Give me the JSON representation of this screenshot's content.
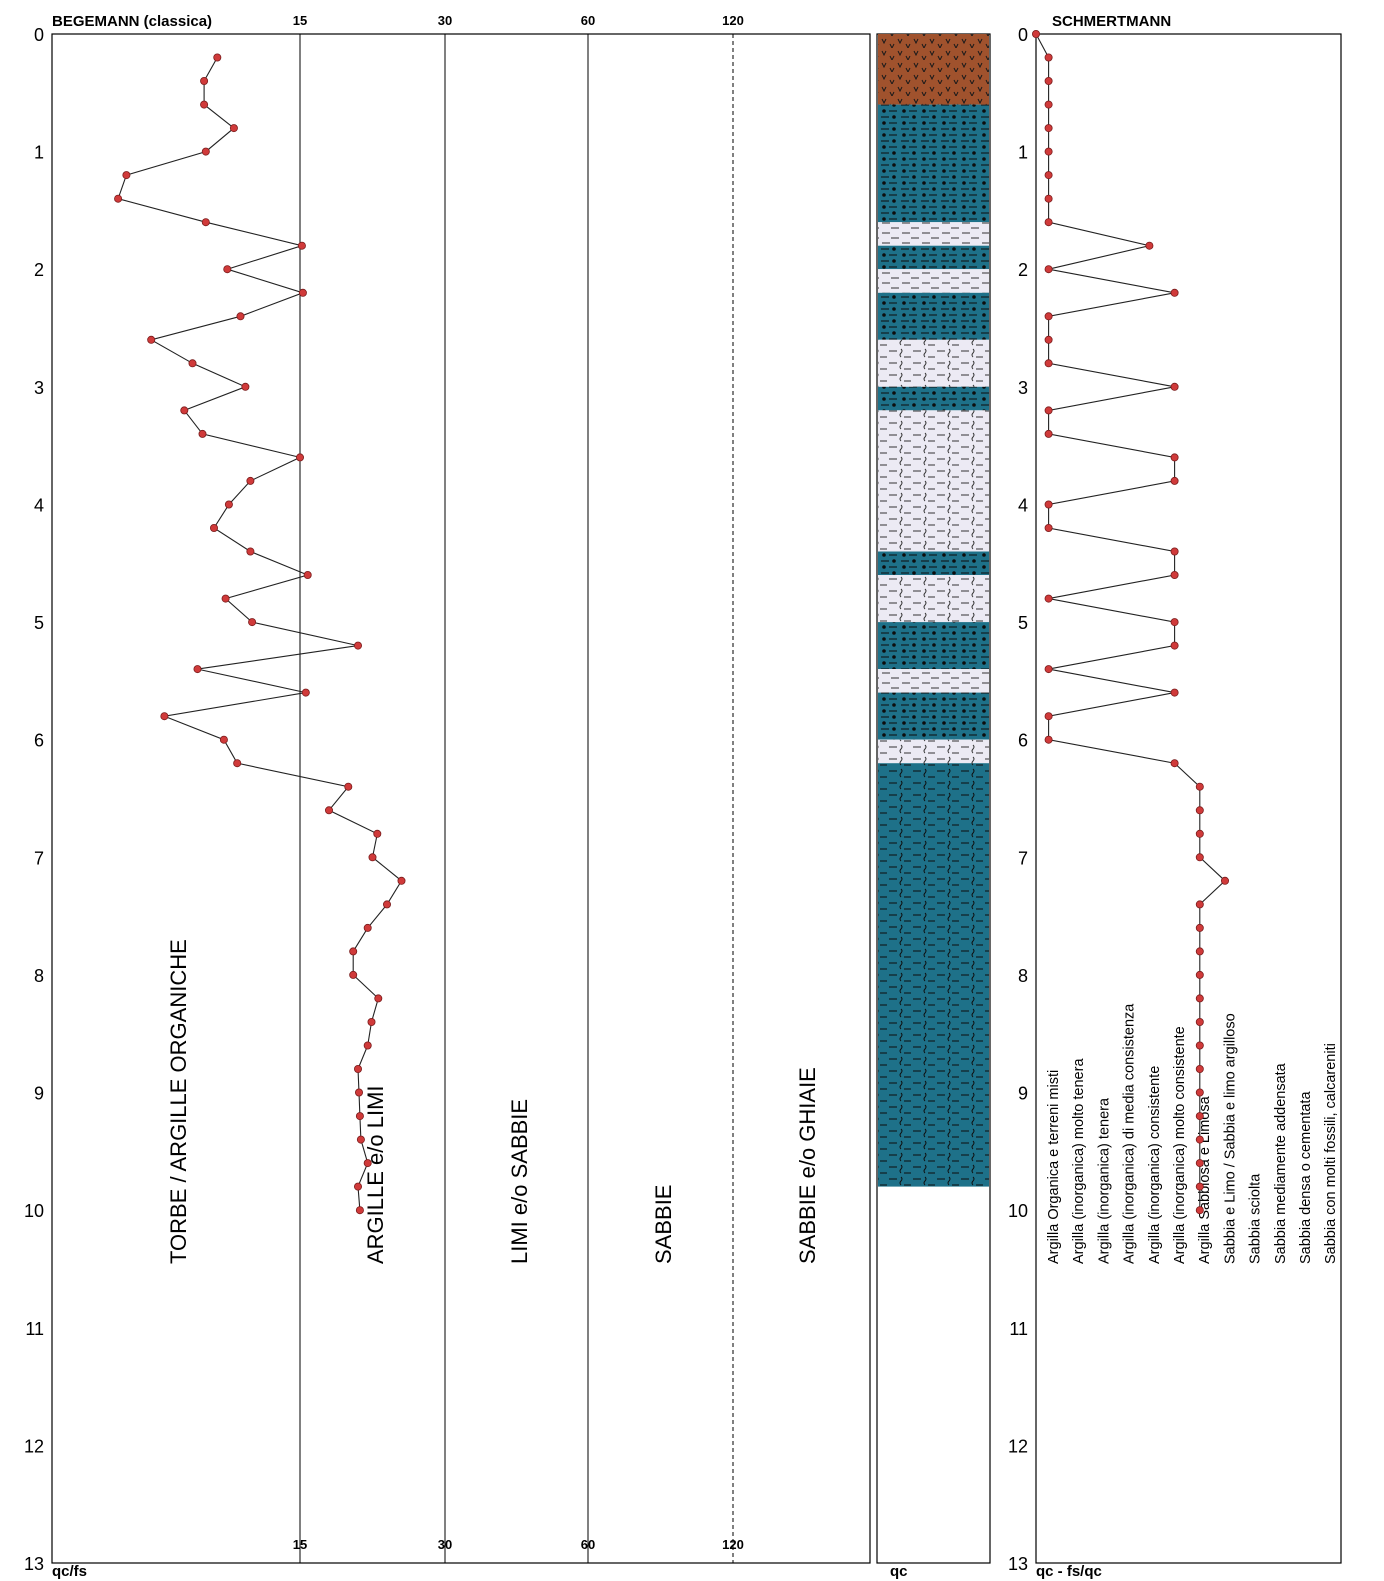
{
  "chart_data": [
    {
      "type": "line",
      "title": "BEGEMANN (classica)",
      "xlabel": "qc/fs",
      "ylabel": "",
      "ylim": [
        0,
        13
      ],
      "y_ticks": [
        "0",
        "1",
        "2",
        "3",
        "4",
        "5",
        "6",
        "7",
        "8",
        "9",
        "10",
        "11",
        "12",
        "13"
      ],
      "zone_boundaries": [
        "15",
        "30",
        "60",
        "120"
      ],
      "zones": [
        "TORBE / ARGILLE ORGANICHE",
        "ARGILLE e/o LIMI",
        "LIMI e/o SABBIE",
        "SABBIE",
        "SABBIE e/o GHIAIE"
      ],
      "series": [
        {
          "x": [
            10.0,
            9.2,
            9.2,
            11.0,
            9.3,
            4.5,
            4.0,
            9.3,
            15.2,
            10.6,
            15.3,
            11.4,
            6.0,
            8.5,
            11.7,
            8.0,
            9.1,
            15.0,
            12.0,
            10.7,
            9.8,
            12.0,
            15.8,
            10.5,
            12.1,
            21.0,
            8.8,
            15.6,
            6.8,
            10.4,
            11.2,
            20.0,
            18.0,
            23.0,
            22.5,
            25.5,
            24.0,
            22.0,
            20.5,
            20.5,
            23.1,
            22.4,
            22.0,
            21.0,
            21.1,
            21.2,
            21.3,
            22.0,
            21.0,
            21.2
          ],
          "y": [
            0.2,
            0.4,
            0.6,
            0.8,
            1.0,
            1.2,
            1.4,
            1.6,
            1.8,
            2.0,
            2.2,
            2.4,
            2.6,
            2.8,
            3.0,
            3.2,
            3.4,
            3.6,
            3.8,
            4.0,
            4.2,
            4.4,
            4.6,
            4.8,
            5.0,
            5.2,
            5.4,
            5.6,
            5.8,
            6.0,
            6.2,
            6.4,
            6.6,
            6.8,
            7.0,
            7.2,
            7.4,
            7.6,
            7.8,
            8.0,
            8.2,
            8.4,
            8.6,
            8.8,
            9.0,
            9.2,
            9.4,
            9.6,
            9.8,
            10.0
          ]
        }
      ]
    },
    {
      "type": "area",
      "title": "",
      "xlabel": "qc",
      "ylim": [
        0,
        13
      ],
      "layers": [
        {
          "from": 0.0,
          "to": 0.6,
          "pattern": "organic",
          "color": "#a0522d"
        },
        {
          "from": 0.6,
          "to": 1.6,
          "pattern": "dots",
          "color": "#1e7189"
        },
        {
          "from": 1.6,
          "to": 1.8,
          "pattern": "dashes",
          "color": "#eceaf4"
        },
        {
          "from": 1.8,
          "to": 2.0,
          "pattern": "dots",
          "color": "#1e7189"
        },
        {
          "from": 2.0,
          "to": 2.2,
          "pattern": "dashes",
          "color": "#eceaf4"
        },
        {
          "from": 2.2,
          "to": 2.6,
          "pattern": "dots",
          "color": "#1e7189"
        },
        {
          "from": 2.6,
          "to": 3.0,
          "pattern": "waves",
          "color": "#eceaf4"
        },
        {
          "from": 3.0,
          "to": 3.2,
          "pattern": "dots",
          "color": "#1e7189"
        },
        {
          "from": 3.2,
          "to": 4.4,
          "pattern": "waves",
          "color": "#eceaf4"
        },
        {
          "from": 4.4,
          "to": 4.6,
          "pattern": "dots",
          "color": "#1e7189"
        },
        {
          "from": 4.6,
          "to": 5.0,
          "pattern": "waves",
          "color": "#eceaf4"
        },
        {
          "from": 5.0,
          "to": 5.4,
          "pattern": "dots",
          "color": "#1e7189"
        },
        {
          "from": 5.4,
          "to": 5.6,
          "pattern": "dashes",
          "color": "#eceaf4"
        },
        {
          "from": 5.6,
          "to": 6.0,
          "pattern": "dots",
          "color": "#1e7189"
        },
        {
          "from": 6.0,
          "to": 6.2,
          "pattern": "waves",
          "color": "#eceaf4"
        },
        {
          "from": 6.2,
          "to": 9.8,
          "pattern": "waves",
          "color": "#1e7189"
        }
      ]
    },
    {
      "type": "line",
      "title": "SCHMERTMANN",
      "xlabel": "qc - fs/qc",
      "ylim": [
        0,
        13
      ],
      "categories": [
        "Argilla Organica e terreni misti",
        "Argilla (inorganica) molto tenera",
        "Argilla (inorganica) tenera",
        "Argilla (inorganica) di media consistenza",
        "Argilla (inorganica) consistente",
        "Argilla (inorganica) molto consistente",
        "Argilla Sabbiosa e Limosa",
        "Sabbia e Limo / Sabbia e limo argilloso",
        "Sabbia sciolta",
        "Sabbia mediamente addensata",
        "Sabbia densa o cementata",
        "Sabbia con molti fossili, calcareniti"
      ],
      "series": [
        {
          "x": [
            0.0,
            0.5,
            0.5,
            0.5,
            0.5,
            0.5,
            0.5,
            0.5,
            0.5,
            4.5,
            0.5,
            5.5,
            0.5,
            0.5,
            0.5,
            5.5,
            0.5,
            0.5,
            5.5,
            5.5,
            0.5,
            0.5,
            5.5,
            5.5,
            0.5,
            5.5,
            5.5,
            0.5,
            5.5,
            0.5,
            0.5,
            5.5,
            6.5,
            6.5,
            6.5,
            6.5,
            7.5,
            6.5,
            6.5,
            6.5,
            6.5,
            6.5,
            6.5,
            6.5,
            6.5,
            6.5,
            6.5,
            6.5,
            6.5,
            6.5,
            6.5
          ],
          "y": [
            0.0,
            0.2,
            0.4,
            0.6,
            0.8,
            1.0,
            1.2,
            1.4,
            1.6,
            1.8,
            2.0,
            2.2,
            2.4,
            2.6,
            2.8,
            3.0,
            3.2,
            3.4,
            3.6,
            3.8,
            4.0,
            4.2,
            4.4,
            4.6,
            4.8,
            5.0,
            5.2,
            5.4,
            5.6,
            5.8,
            6.0,
            6.2,
            6.4,
            6.6,
            6.8,
            7.0,
            7.2,
            7.4,
            7.6,
            7.8,
            8.0,
            8.2,
            8.4,
            8.6,
            8.8,
            9.0,
            9.2,
            9.4,
            9.6,
            9.8,
            10.0
          ]
        }
      ]
    }
  ]
}
